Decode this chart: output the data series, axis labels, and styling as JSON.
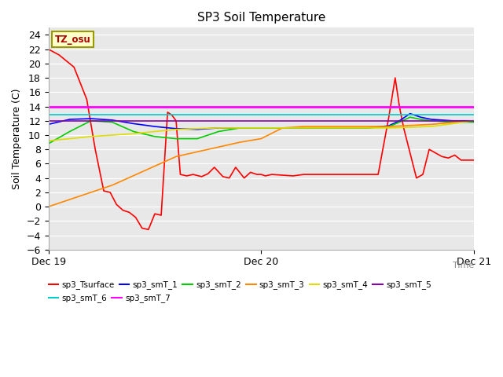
{
  "title": "SP3 Soil Temperature",
  "ylabel": "Soil Temperature (C)",
  "xlabel": "Time",
  "tz_label": "TZ_osu",
  "xlim": [
    0,
    2.0
  ],
  "ylim": [
    -6,
    25
  ],
  "yticks": [
    -6,
    -4,
    -2,
    0,
    2,
    4,
    6,
    8,
    10,
    12,
    14,
    16,
    18,
    20,
    22,
    24
  ],
  "xtick_labels": [
    "Dec 19",
    "Dec 20",
    "Dec 21"
  ],
  "xtick_positions": [
    0,
    1.0,
    2.0
  ],
  "fig_bg_color": "#ffffff",
  "axes_bg_color": "#e8e8e8",
  "grid_color": "#ffffff",
  "series": [
    {
      "name": "sp3_Tsurface",
      "color": "#ff0000",
      "linewidth": 1.2,
      "x": [
        0,
        0.05,
        0.12,
        0.18,
        0.22,
        0.26,
        0.29,
        0.32,
        0.35,
        0.38,
        0.41,
        0.44,
        0.47,
        0.5,
        0.53,
        0.56,
        0.58,
        0.6,
        0.62,
        0.65,
        0.68,
        0.72,
        0.75,
        0.78,
        0.82,
        0.85,
        0.88,
        0.92,
        0.95,
        0.98,
        1.0,
        1.02,
        1.05,
        1.1,
        1.15,
        1.2,
        1.25,
        1.3,
        1.35,
        1.4,
        1.45,
        1.5,
        1.55,
        1.6,
        1.63,
        1.65,
        1.67,
        1.7,
        1.73,
        1.76,
        1.79,
        1.82,
        1.85,
        1.88,
        1.91,
        1.94,
        1.97,
        2.0
      ],
      "y": [
        22,
        21.2,
        19.5,
        15,
        8,
        2.2,
        2.0,
        0.3,
        -0.5,
        -0.8,
        -1.5,
        -3.0,
        -3.2,
        -1.0,
        -1.2,
        13.2,
        12.8,
        12.0,
        4.5,
        4.3,
        4.5,
        4.2,
        4.6,
        5.5,
        4.2,
        4.0,
        5.5,
        4.0,
        4.8,
        4.5,
        4.5,
        4.3,
        4.5,
        4.4,
        4.3,
        4.5,
        4.5,
        4.5,
        4.5,
        4.5,
        4.5,
        4.5,
        4.5,
        12.5,
        18.0,
        14.0,
        11.0,
        7.5,
        4.0,
        4.5,
        8.0,
        7.5,
        7.0,
        6.8,
        7.2,
        6.5,
        6.5,
        6.5
      ]
    },
    {
      "name": "sp3_smT_1",
      "color": "#0000ff",
      "linewidth": 1.2,
      "x": [
        0,
        0.1,
        0.2,
        0.3,
        0.4,
        0.5,
        0.6,
        0.7,
        0.8,
        0.9,
        1.0,
        1.1,
        1.2,
        1.3,
        1.4,
        1.5,
        1.6,
        1.65,
        1.7,
        1.75,
        1.8,
        1.9,
        2.0
      ],
      "y": [
        11.5,
        12.2,
        12.3,
        12.1,
        11.6,
        11.2,
        10.9,
        10.8,
        11.0,
        11.0,
        11.0,
        11.0,
        11.0,
        11.0,
        11.0,
        11.0,
        11.3,
        12.0,
        13.0,
        12.5,
        12.2,
        12.0,
        12.0
      ]
    },
    {
      "name": "sp3_smT_2",
      "color": "#00cc00",
      "linewidth": 1.2,
      "x": [
        0,
        0.1,
        0.2,
        0.3,
        0.4,
        0.5,
        0.6,
        0.7,
        0.8,
        0.9,
        1.0,
        1.1,
        1.2,
        1.3,
        1.4,
        1.5,
        1.6,
        1.65,
        1.7,
        1.75,
        1.8,
        1.9,
        2.0
      ],
      "y": [
        8.8,
        10.5,
        12.0,
        11.8,
        10.5,
        9.8,
        9.5,
        9.5,
        10.5,
        11.0,
        11.0,
        11.0,
        11.0,
        11.0,
        11.0,
        11.0,
        11.2,
        11.8,
        12.5,
        12.2,
        12.0,
        11.8,
        11.8
      ]
    },
    {
      "name": "sp3_smT_3",
      "color": "#ff8800",
      "linewidth": 1.2,
      "x": [
        0,
        0.15,
        0.3,
        0.45,
        0.6,
        0.75,
        0.9,
        1.0,
        1.1,
        1.2,
        1.4,
        1.6,
        1.8,
        2.0
      ],
      "y": [
        0.0,
        1.5,
        3.0,
        5.0,
        7.0,
        8.0,
        9.0,
        9.5,
        11.0,
        11.2,
        11.2,
        11.2,
        11.5,
        12.0
      ]
    },
    {
      "name": "sp3_smT_4",
      "color": "#dddd00",
      "linewidth": 1.2,
      "x": [
        0,
        0.1,
        0.2,
        0.3,
        0.4,
        0.5,
        0.6,
        0.8,
        1.0,
        1.2,
        1.4,
        1.6,
        1.8,
        2.0
      ],
      "y": [
        9.2,
        9.5,
        9.8,
        10.0,
        10.2,
        10.5,
        10.8,
        11.0,
        11.0,
        11.0,
        11.0,
        11.0,
        11.2,
        12.0
      ]
    },
    {
      "name": "sp3_smT_5",
      "color": "#8800aa",
      "linewidth": 1.2,
      "x": [
        0,
        0.5,
        1.0,
        1.5,
        2.0
      ],
      "y": [
        12.0,
        12.0,
        12.0,
        12.0,
        12.0
      ]
    },
    {
      "name": "sp3_smT_6",
      "color": "#00cccc",
      "linewidth": 1.2,
      "x": [
        0,
        0.5,
        1.0,
        1.5,
        2.0
      ],
      "y": [
        12.8,
        12.8,
        12.8,
        12.8,
        12.8
      ]
    },
    {
      "name": "sp3_smT_7",
      "color": "#ff00ff",
      "linewidth": 2.0,
      "x": [
        0,
        0.5,
        1.0,
        1.5,
        2.0
      ],
      "y": [
        14.0,
        14.0,
        14.0,
        14.0,
        14.0
      ]
    }
  ],
  "legend": [
    {
      "name": "sp3_Tsurface",
      "color": "#ff0000"
    },
    {
      "name": "sp3_smT_1",
      "color": "#0000ff"
    },
    {
      "name": "sp3_smT_2",
      "color": "#00cc00"
    },
    {
      "name": "sp3_smT_3",
      "color": "#ff8800"
    },
    {
      "name": "sp3_smT_4",
      "color": "#dddd00"
    },
    {
      "name": "sp3_smT_5",
      "color": "#8800aa"
    },
    {
      "name": "sp3_smT_6",
      "color": "#00cccc"
    },
    {
      "name": "sp3_smT_7",
      "color": "#ff00ff"
    }
  ]
}
